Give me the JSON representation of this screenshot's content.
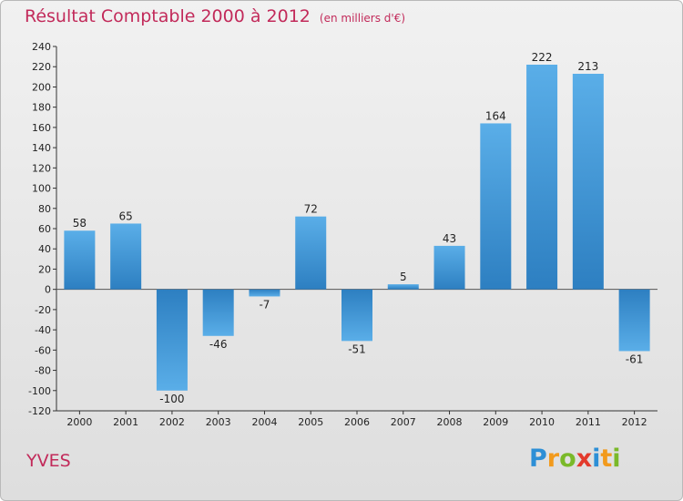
{
  "header": {
    "title": "Résultat Comptable 2000 à 2012",
    "subtitle": "(en milliers d'€)"
  },
  "footer": {
    "place": "YVES",
    "logo_letters": [
      {
        "char": "P",
        "color": "#2d8fd6"
      },
      {
        "char": "r",
        "color": "#f29a1c"
      },
      {
        "char": "o",
        "color": "#7ab929"
      },
      {
        "char": "x",
        "color": "#e33a2c"
      },
      {
        "char": "i",
        "color": "#2d8fd6"
      },
      {
        "char": "t",
        "color": "#f29a1c"
      },
      {
        "char": "i",
        "color": "#7ab929"
      }
    ]
  },
  "colors": {
    "bar_light": "#5aaee8",
    "bar_dark": "#2d7fc1",
    "title": "#c22a5a"
  },
  "chart_data": {
    "type": "bar",
    "title": "Résultat Comptable 2000 à 2012",
    "subtitle": "(en milliers d'€)",
    "xlabel": "",
    "ylabel": "",
    "categories": [
      "2000",
      "2001",
      "2002",
      "2003",
      "2004",
      "2005",
      "2006",
      "2007",
      "2008",
      "2009",
      "2010",
      "2011",
      "2012"
    ],
    "values": [
      58,
      65,
      -100,
      -46,
      -7,
      72,
      -51,
      5,
      43,
      164,
      222,
      213,
      -61
    ],
    "data_labels": [
      "58",
      "65",
      "-100",
      "-46",
      "-7",
      "72",
      "-51",
      "5",
      "43",
      "164",
      "222",
      "213",
      "-61"
    ],
    "ylim": [
      -120,
      240
    ],
    "yticks": [
      -120,
      -100,
      -80,
      -60,
      -40,
      -20,
      0,
      20,
      40,
      60,
      80,
      100,
      120,
      140,
      160,
      180,
      200,
      220,
      240
    ],
    "grid": false,
    "legend": "none"
  }
}
